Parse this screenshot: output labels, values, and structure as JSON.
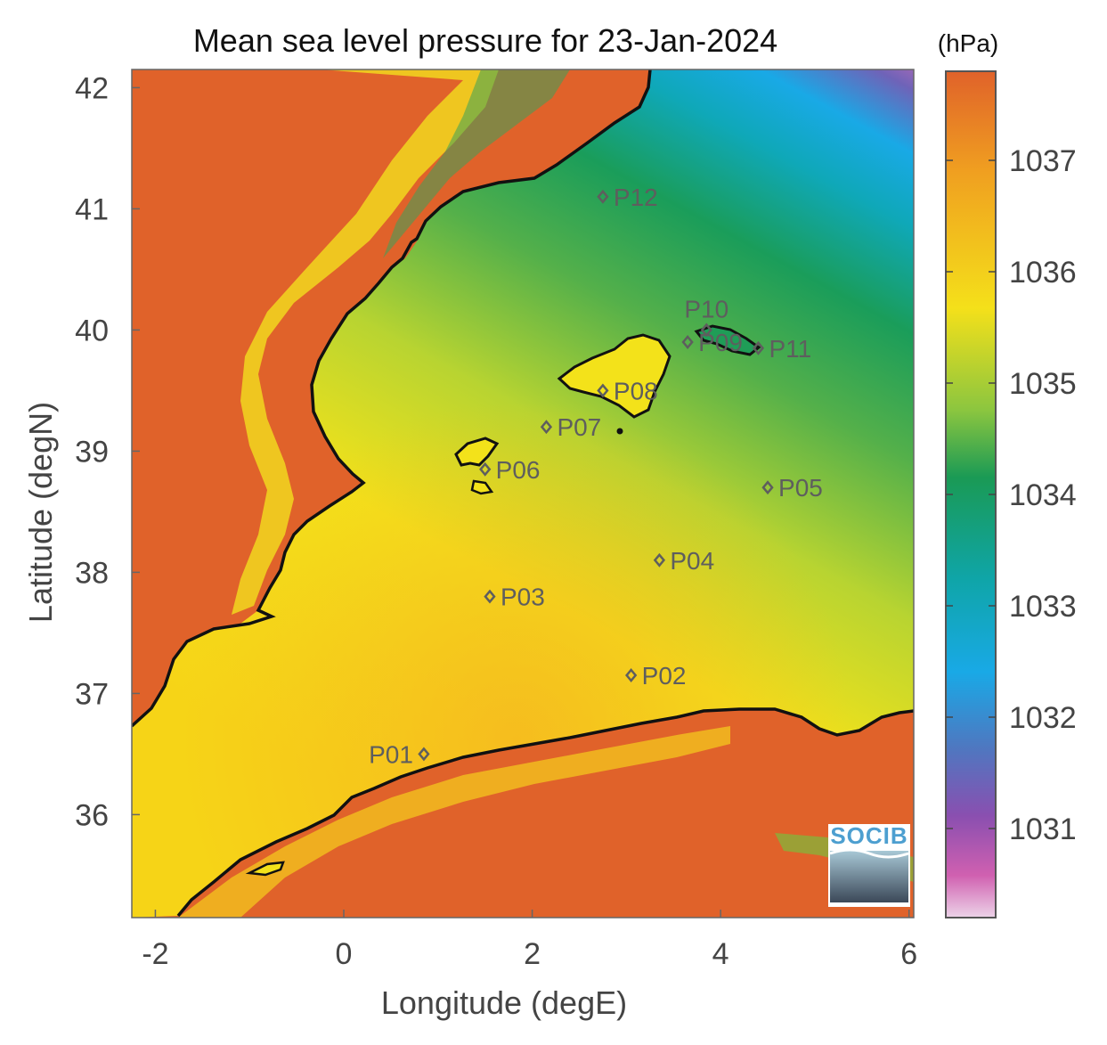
{
  "map": {
    "title": "Mean sea level pressure for 23-Jan-2024",
    "xlabel": "Longitude (degE)",
    "ylabel": "Latitude (degN)",
    "x_ticks": [
      "-2",
      "0",
      "2",
      "4",
      "6"
    ],
    "y_ticks": [
      "42",
      "41",
      "40",
      "39",
      "38",
      "37",
      "36"
    ],
    "extent": {
      "lon_min": -2.25,
      "lon_max": 6.05,
      "lat_min": 35.15,
      "lat_max": 42.15
    }
  },
  "colorbar": {
    "unit": "(hPa)",
    "ticks": [
      "1037",
      "1036",
      "1035",
      "1034",
      "1033",
      "1032",
      "1031"
    ],
    "range": [
      1030.2,
      1037.8
    ]
  },
  "stations": [
    {
      "id": "P01",
      "lon": 0.85,
      "lat": 36.5
    },
    {
      "id": "P02",
      "lon": 3.05,
      "lat": 37.15
    },
    {
      "id": "P03",
      "lon": 1.55,
      "lat": 37.8
    },
    {
      "id": "P04",
      "lon": 3.35,
      "lat": 38.1
    },
    {
      "id": "P05",
      "lon": 4.5,
      "lat": 38.7
    },
    {
      "id": "P06",
      "lon": 1.5,
      "lat": 38.85
    },
    {
      "id": "P07",
      "lon": 2.15,
      "lat": 39.2
    },
    {
      "id": "P08",
      "lon": 2.75,
      "lat": 39.5
    },
    {
      "id": "P09",
      "lon": 3.65,
      "lat": 39.9
    },
    {
      "id": "P10",
      "lon": 3.85,
      "lat": 40.0
    },
    {
      "id": "P11",
      "lon": 4.4,
      "lat": 39.85
    },
    {
      "id": "P12",
      "lon": 2.75,
      "lat": 41.1
    }
  ],
  "logo": {
    "text": "SOCIB"
  },
  "colors": {
    "land_high": "#e0622a",
    "sea_yellow": "#f3e21a",
    "sea_green": "#1b9e53",
    "sea_blue": "#1aa8e0",
    "sea_purple": "#8a4fb0",
    "coast": "#111111",
    "marker": "#5e5e5e"
  }
}
